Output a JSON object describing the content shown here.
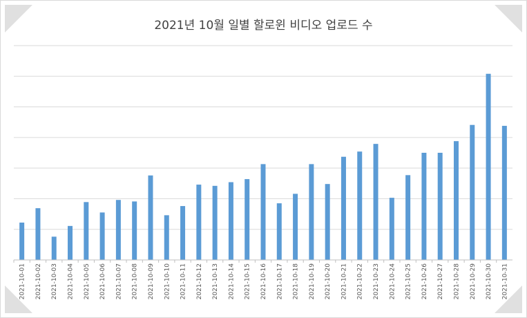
{
  "chart_data": {
    "type": "bar",
    "title": "2021년 10월 일별 할로윈 비디오 업로드 수",
    "xlabel": "",
    "ylabel": "",
    "ylim": [
      0,
      700
    ],
    "grid": true,
    "legend": "none",
    "color": "#5b9bd5",
    "categories": [
      "2021-10-01",
      "2021-10-02",
      "2021-10-03",
      "2021-10-04",
      "2021-10-05",
      "2021-10-06",
      "2021-10-07",
      "2021-10-08",
      "2021-10-09",
      "2021-10-10",
      "2021-10-11",
      "2021-10-12",
      "2021-10-13",
      "2021-10-14",
      "2021-10-15",
      "2021-10-16",
      "2021-10-17",
      "2021-10-18",
      "2021-10-19",
      "2021-10-20",
      "2021-10-21",
      "2021-10-22",
      "2021-10-23",
      "2021-10-24",
      "2021-10-25",
      "2021-10-26",
      "2021-10-27",
      "2021-10-28",
      "2021-10-29",
      "2021-10-30",
      "2021-10-31"
    ],
    "values": [
      122,
      169,
      76,
      111,
      189,
      155,
      196,
      191,
      276,
      146,
      176,
      246,
      242,
      254,
      264,
      313,
      185,
      216,
      313,
      248,
      337,
      354,
      379,
      203,
      277,
      350,
      350,
      388,
      441,
      608,
      438
    ]
  }
}
